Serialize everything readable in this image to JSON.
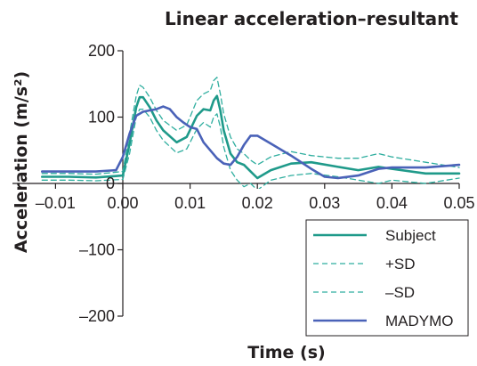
{
  "chart_data": {
    "type": "line",
    "title": "Linear acceleration–resultant",
    "xlabel": "Time (s)",
    "ylabel": "Acceleration (m/s²)",
    "xlim": [
      -0.01,
      0.05
    ],
    "ylim": [
      -200,
      200
    ],
    "x_ticks": [
      "–0.01",
      "0.00",
      "0.01",
      "0.02",
      "0.03",
      "0.04",
      "0.05"
    ],
    "y_ticks": [
      "200",
      "100",
      "0",
      "–100",
      "–200"
    ],
    "grid": false,
    "legend_position": "bottom-right",
    "colors": {
      "subject": "#1f9a8a",
      "sd": "#2fae9f",
      "madymo": "#4a62b8"
    },
    "series": [
      {
        "name": "Subject",
        "style": "solid",
        "x": [
          -0.012,
          -0.008,
          -0.004,
          0.0,
          0.001,
          0.002,
          0.0025,
          0.003,
          0.004,
          0.005,
          0.006,
          0.008,
          0.0095,
          0.011,
          0.012,
          0.013,
          0.0135,
          0.014,
          0.0145,
          0.015,
          0.016,
          0.017,
          0.018,
          0.019,
          0.02,
          0.022,
          0.025,
          0.028,
          0.032,
          0.035,
          0.038,
          0.04,
          0.045,
          0.05
        ],
        "y": [
          10,
          10,
          9,
          12,
          60,
          115,
          130,
          130,
          115,
          95,
          80,
          62,
          70,
          102,
          112,
          110,
          125,
          132,
          110,
          80,
          45,
          32,
          28,
          18,
          8,
          20,
          30,
          32,
          25,
          20,
          25,
          22,
          15,
          15
        ]
      },
      {
        "name": "+SD",
        "style": "dashed",
        "x": [
          -0.012,
          -0.008,
          -0.004,
          0.0,
          0.001,
          0.002,
          0.0025,
          0.003,
          0.004,
          0.005,
          0.006,
          0.008,
          0.0095,
          0.011,
          0.012,
          0.013,
          0.0135,
          0.014,
          0.0145,
          0.015,
          0.016,
          0.017,
          0.018,
          0.019,
          0.02,
          0.022,
          0.025,
          0.028,
          0.032,
          0.035,
          0.038,
          0.04,
          0.045,
          0.05
        ],
        "y": [
          15,
          15,
          14,
          18,
          75,
          132,
          148,
          145,
          130,
          110,
          95,
          80,
          88,
          125,
          135,
          140,
          155,
          160,
          135,
          105,
          70,
          52,
          45,
          35,
          28,
          40,
          48,
          42,
          38,
          38,
          45,
          40,
          32,
          24
        ]
      },
      {
        "name": "–SD",
        "style": "dashed",
        "x": [
          -0.012,
          -0.008,
          -0.004,
          0.0,
          0.001,
          0.002,
          0.0025,
          0.003,
          0.004,
          0.005,
          0.006,
          0.008,
          0.0095,
          0.011,
          0.012,
          0.013,
          0.0135,
          0.014,
          0.0145,
          0.015,
          0.016,
          0.017,
          0.018,
          0.019,
          0.02,
          0.022,
          0.025,
          0.028,
          0.032,
          0.035,
          0.038,
          0.04,
          0.045,
          0.05
        ],
        "y": [
          5,
          5,
          4,
          6,
          45,
          100,
          112,
          112,
          100,
          80,
          65,
          46,
          52,
          82,
          92,
          85,
          100,
          105,
          85,
          55,
          20,
          5,
          -5,
          0,
          -10,
          5,
          12,
          15,
          10,
          5,
          0,
          5,
          0,
          8
        ]
      },
      {
        "name": "MADYMO",
        "style": "solid",
        "x": [
          -0.012,
          -0.008,
          -0.004,
          -0.001,
          0.0,
          0.001,
          0.002,
          0.003,
          0.004,
          0.005,
          0.006,
          0.007,
          0.008,
          0.009,
          0.01,
          0.011,
          0.012,
          0.013,
          0.014,
          0.015,
          0.016,
          0.017,
          0.018,
          0.019,
          0.02,
          0.022,
          0.025,
          0.028,
          0.03,
          0.032,
          0.035,
          0.038,
          0.04,
          0.045,
          0.05
        ],
        "y": [
          18,
          18,
          18,
          20,
          40,
          75,
          102,
          108,
          110,
          112,
          116,
          112,
          100,
          92,
          85,
          82,
          62,
          50,
          38,
          30,
          28,
          40,
          58,
          72,
          72,
          60,
          42,
          22,
          10,
          8,
          12,
          22,
          24,
          24,
          28
        ]
      }
    ]
  }
}
